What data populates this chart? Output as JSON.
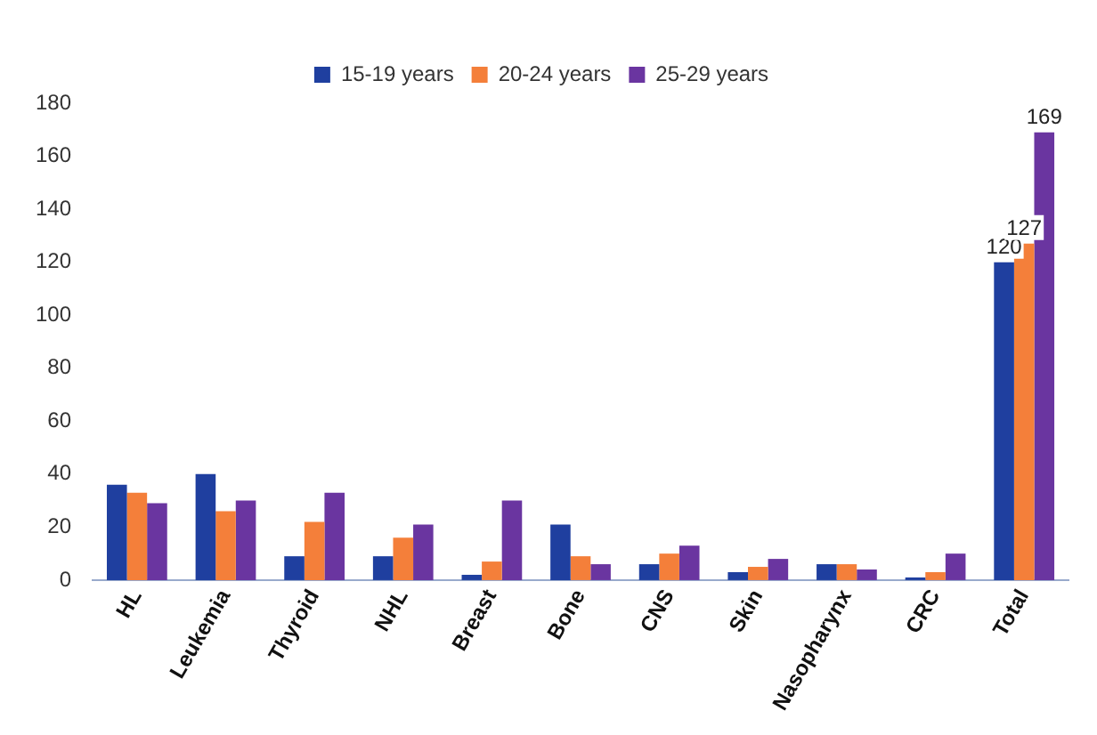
{
  "chart_data": {
    "type": "bar",
    "categories": [
      "HL",
      "Leukemia",
      "Thyroid",
      "NHL",
      "Breast",
      "Bone",
      "CNS",
      "Skin",
      "Nasopharynx",
      "CRC",
      "Total"
    ],
    "series": [
      {
        "name": "15-19 years",
        "color": "#1f3f9f",
        "values": [
          36,
          40,
          9,
          9,
          2,
          21,
          6,
          3,
          6,
          1,
          120
        ],
        "value_labels": [
          null,
          null,
          null,
          null,
          null,
          null,
          null,
          null,
          null,
          null,
          "120"
        ]
      },
      {
        "name": "20-24 years",
        "color": "#f47f3a",
        "values": [
          33,
          26,
          22,
          16,
          7,
          9,
          10,
          5,
          6,
          3,
          127
        ],
        "value_labels": [
          null,
          null,
          null,
          null,
          null,
          null,
          null,
          null,
          null,
          null,
          "127"
        ]
      },
      {
        "name": "25-29 years",
        "color": "#6a35a0",
        "values": [
          29,
          30,
          33,
          21,
          30,
          6,
          13,
          8,
          4,
          10,
          169
        ],
        "value_labels": [
          null,
          null,
          null,
          null,
          null,
          null,
          null,
          null,
          null,
          null,
          "169"
        ]
      }
    ],
    "ylim": [
      0,
      180
    ],
    "yticks": [
      0,
      20,
      40,
      60,
      80,
      100,
      120,
      140,
      160,
      180
    ],
    "grid": false,
    "legend": "top"
  }
}
